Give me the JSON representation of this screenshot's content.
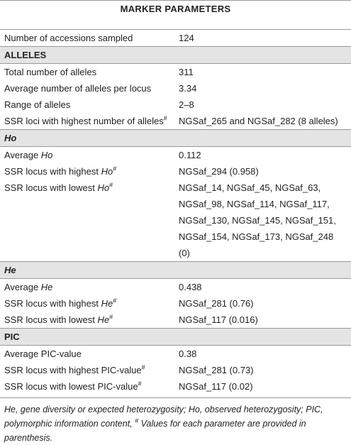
{
  "title": "MARKER PARAMETERS",
  "sections": [
    {
      "rows": [
        {
          "label": [
            "Number of accessions sampled"
          ],
          "value": "124"
        }
      ]
    },
    {
      "heading": [
        "ALLELES"
      ],
      "rows": [
        {
          "label": [
            "Total number of alleles"
          ],
          "value": "311"
        },
        {
          "label": [
            "Average number of alleles per locus"
          ],
          "value": "3.34"
        },
        {
          "label": [
            "Range of alleles"
          ],
          "value": "2–8"
        },
        {
          "label": [
            "SSR loci with highest number of alleles",
            "#"
          ],
          "value": "NGSaf_265 and NGSaf_282 (8 alleles)"
        }
      ]
    },
    {
      "heading": [
        "Ho"
      ],
      "rows": [
        {
          "label": [
            "Average ",
            "Ho"
          ],
          "value": "0.112"
        },
        {
          "label": [
            "SSR locus with highest ",
            "Ho",
            "#"
          ],
          "value": "NGSaf_294 (0.958)"
        },
        {
          "label": [
            "SSR locus with lowest ",
            "Ho",
            "#"
          ],
          "value": "NGSaf_14, NGSaf_45, NGSaf_63, NGSaf_98, NGSaf_114, NGSaf_117, NGSaf_130, NGSaf_145, NGSaf_151, NGSaf_154, NGSaf_173, NGSaf_248 (0)"
        }
      ]
    },
    {
      "heading": [
        "He"
      ],
      "rows": [
        {
          "label": [
            "Average ",
            "He"
          ],
          "value": "0.438"
        },
        {
          "label": [
            "SSR locus with highest ",
            "He",
            "#"
          ],
          "value": "NGSaf_281 (0.76)"
        },
        {
          "label": [
            "SSR locus with lowest ",
            "He",
            "#"
          ],
          "value": "NGSaf_117 (0.016)"
        }
      ]
    },
    {
      "heading": [
        "PIC"
      ],
      "rows": [
        {
          "label": [
            "Average PIC-value"
          ],
          "value": "0.38"
        },
        {
          "label": [
            "SSR locus with highest PIC-value",
            "#"
          ],
          "value": "NGSaf_281 (0.73)"
        },
        {
          "label": [
            "SSR locus with lowest PIC-value",
            "#"
          ],
          "value": "NGSaf_117 (0.02)"
        }
      ]
    }
  ],
  "footnote": [
    "He",
    ", gene diversity or expected heterozygosity; ",
    "Ho",
    ", observed heterozygosity; PIC, polymorphic information content, ",
    "#",
    " Values for each parameter are provided in parenthesis."
  ]
}
